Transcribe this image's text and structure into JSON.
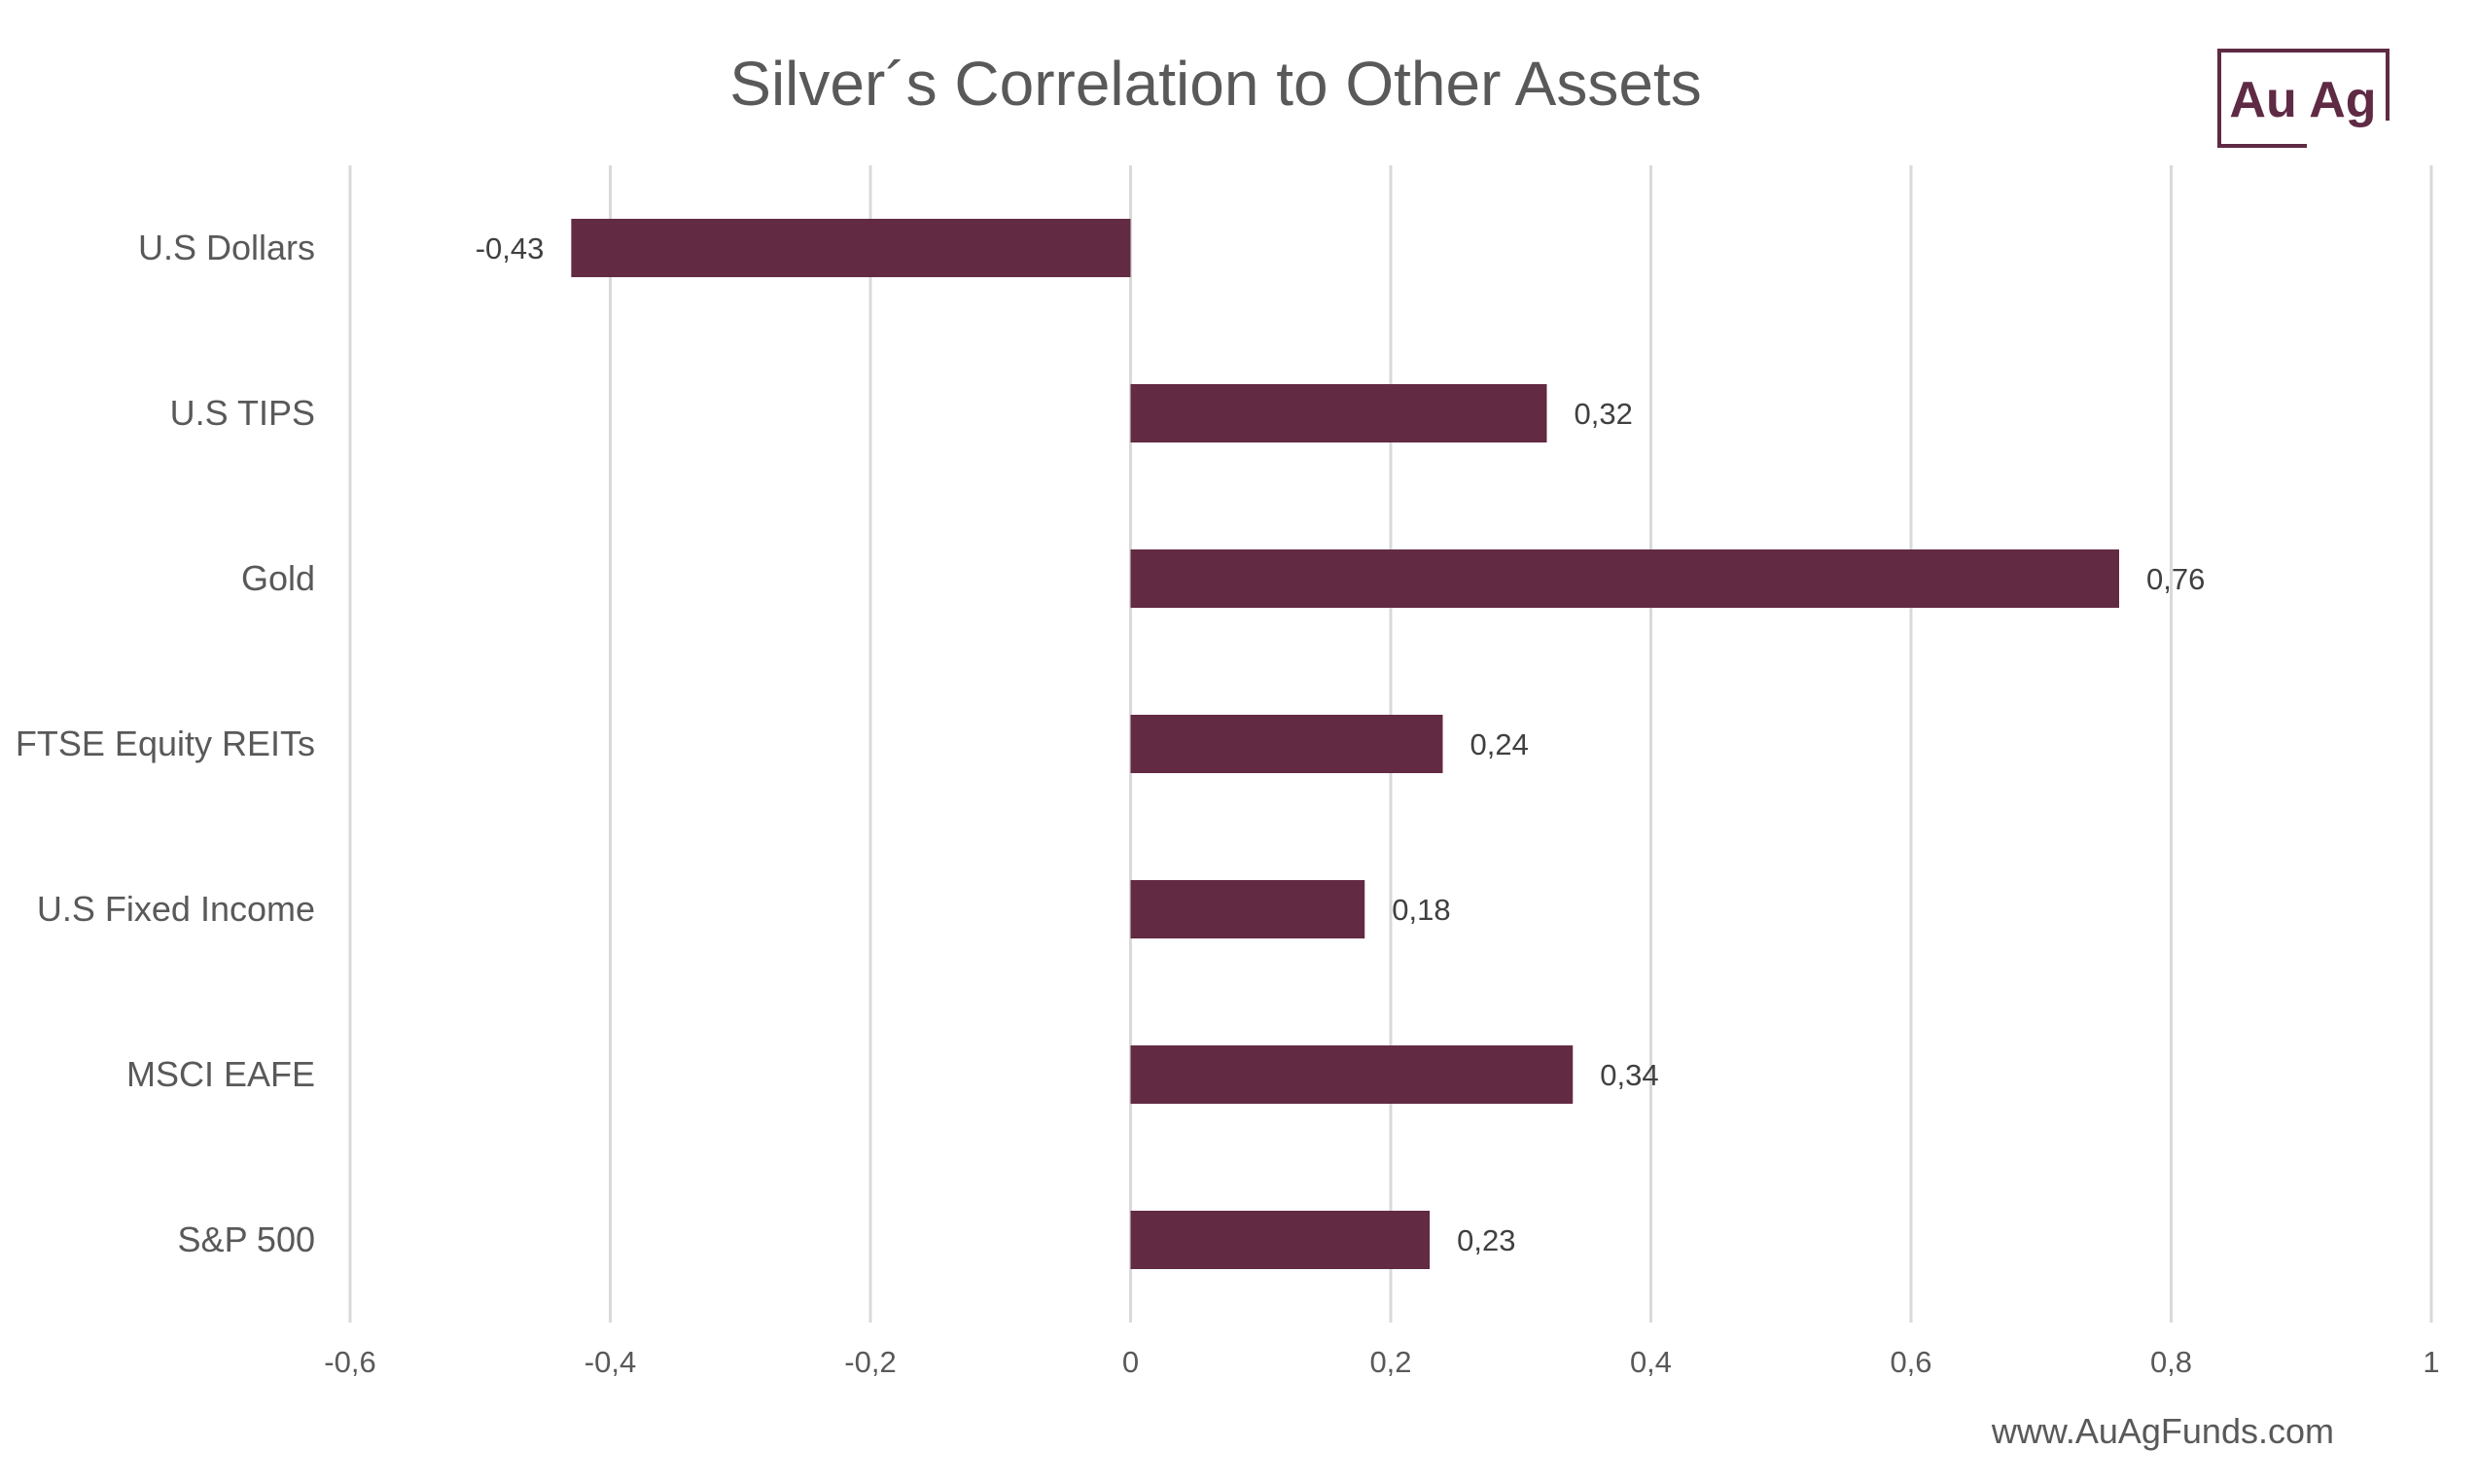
{
  "chart_data": {
    "type": "bar",
    "orientation": "horizontal",
    "title": "Silver´s Correlation to Other Assets",
    "categories": [
      "U.S Dollars",
      "U.S TIPS",
      "Gold",
      "FTSE Equity REITs",
      "U.S Fixed Income",
      "MSCI EAFE",
      "S&P 500"
    ],
    "values": [
      -0.43,
      0.32,
      0.76,
      0.24,
      0.18,
      0.34,
      0.23
    ],
    "value_labels": [
      "-0,43",
      "0,32",
      "0,76",
      "0,24",
      "0,18",
      "0,34",
      "0,23"
    ],
    "xlim": [
      -0.6,
      1
    ],
    "xticks": [
      -0.6,
      -0.4,
      -0.2,
      0,
      0.2,
      0.4,
      0.6,
      0.8,
      1
    ],
    "xtick_labels": [
      "-0,6",
      "-0,4",
      "-0,2",
      "0",
      "0,2",
      "0,4",
      "0,6",
      "0,8",
      "1"
    ],
    "xlabel": "",
    "ylabel": "",
    "grid": "vertical",
    "bar_color": "#622a43",
    "grid_color": "#d9d9d9",
    "text_color": "#595959"
  },
  "logo": {
    "text": "Au Ag",
    "color": "#5f2a44"
  },
  "footer": {
    "url": "www.AuAgFunds.com"
  }
}
